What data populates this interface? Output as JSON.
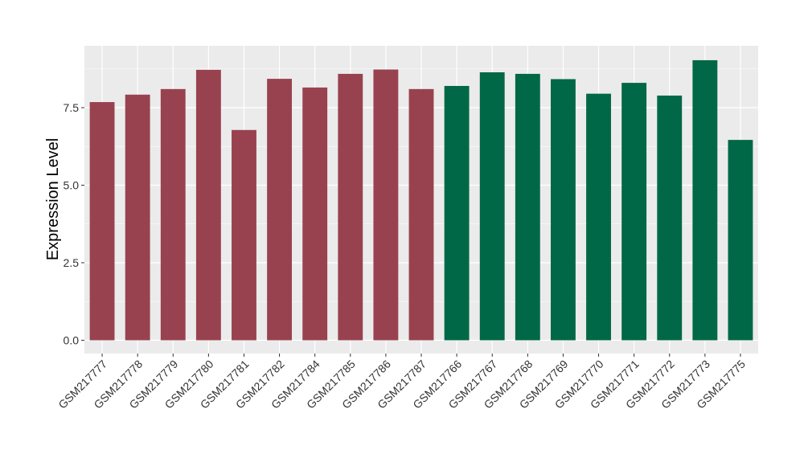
{
  "chart_data": {
    "type": "bar",
    "title": "",
    "xlabel": "",
    "ylabel": "Expression Level",
    "ylim": [
      0,
      9.3
    ],
    "y_ticks": [
      0.0,
      2.5,
      5.0,
      7.5
    ],
    "y_tick_labels": [
      "0.0",
      "2.5",
      "5.0",
      "7.5"
    ],
    "grid": true,
    "legend": "none",
    "categories": [
      "GSM217777",
      "GSM217778",
      "GSM217779",
      "GSM217780",
      "GSM217781",
      "GSM217782",
      "GSM217784",
      "GSM217785",
      "GSM217786",
      "GSM217787",
      "GSM217766",
      "GSM217767",
      "GSM217768",
      "GSM217769",
      "GSM217770",
      "GSM217771",
      "GSM217772",
      "GSM217773",
      "GSM217775"
    ],
    "values": [
      7.68,
      7.92,
      8.1,
      8.72,
      6.78,
      8.43,
      8.15,
      8.59,
      8.73,
      8.1,
      8.2,
      8.64,
      8.59,
      8.42,
      7.95,
      8.3,
      7.89,
      9.03,
      6.46
    ],
    "bar_colors": [
      "#99424f",
      "#99424f",
      "#99424f",
      "#99424f",
      "#99424f",
      "#99424f",
      "#99424f",
      "#99424f",
      "#99424f",
      "#99424f",
      "#006846",
      "#006846",
      "#006846",
      "#006846",
      "#006846",
      "#006846",
      "#006846",
      "#006846",
      "#006846"
    ],
    "panel_background": "#ebebeb",
    "grid_color": "#ffffff"
  }
}
